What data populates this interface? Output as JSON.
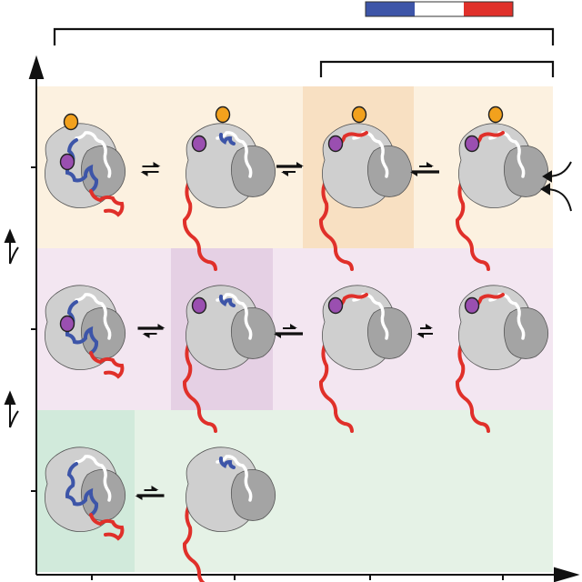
{
  "colors": {
    "scale_blue": "#3d55a8",
    "scale_white": "#ffffff",
    "scale_red": "#e0302a",
    "row1_bg": "#fcf1e0",
    "row1_highlight": "#f8e0c2",
    "row2_bg": "#f3e6f1",
    "row2_highlight": "#e5d0e4",
    "row3_bg": "#e5f2e6",
    "row3_highlight": "#d1eadb",
    "protein_light": "#cfcfcf",
    "protein_dark": "#a4a4a4",
    "chain_blue": "#3d55a8",
    "chain_red": "#e0302a",
    "ligand_orange": "#f2a11d",
    "ligand_purple": "#9a4fb0"
  },
  "rows": [
    {
      "name": "row-1",
      "states": [
        {
          "blue_extent": "high",
          "orange_ligand": true,
          "purple_ligand": true,
          "chain": "compact"
        },
        {
          "blue_extent": "medium",
          "orange_ligand": true,
          "purple_ligand": true,
          "chain": "extended"
        },
        {
          "blue_extent": "none",
          "orange_ligand": true,
          "purple_ligand": true,
          "chain": "extended"
        },
        {
          "blue_extent": "none",
          "orange_ligand": true,
          "purple_ligand": true,
          "chain": "extended",
          "arrows_in": true
        }
      ],
      "equilibria": [
        "balanced",
        "forward",
        "backward"
      ]
    },
    {
      "name": "row-2",
      "states": [
        {
          "blue_extent": "high",
          "orange_ligand": false,
          "purple_ligand": true,
          "chain": "compact"
        },
        {
          "blue_extent": "medium",
          "orange_ligand": false,
          "purple_ligand": true,
          "chain": "extended"
        },
        {
          "blue_extent": "none",
          "orange_ligand": false,
          "purple_ligand": true,
          "chain": "extended"
        },
        {
          "blue_extent": "none",
          "orange_ligand": false,
          "purple_ligand": true,
          "chain": "extended"
        }
      ],
      "equilibria": [
        "forward",
        "backward",
        "backward-small"
      ]
    },
    {
      "name": "row-3",
      "states": [
        {
          "blue_extent": "high",
          "orange_ligand": false,
          "purple_ligand": false,
          "chain": "compact"
        },
        {
          "blue_extent": "medium",
          "orange_ligand": false,
          "purple_ligand": false,
          "chain": "extended"
        }
      ],
      "equilibria": [
        "backward"
      ]
    }
  ]
}
